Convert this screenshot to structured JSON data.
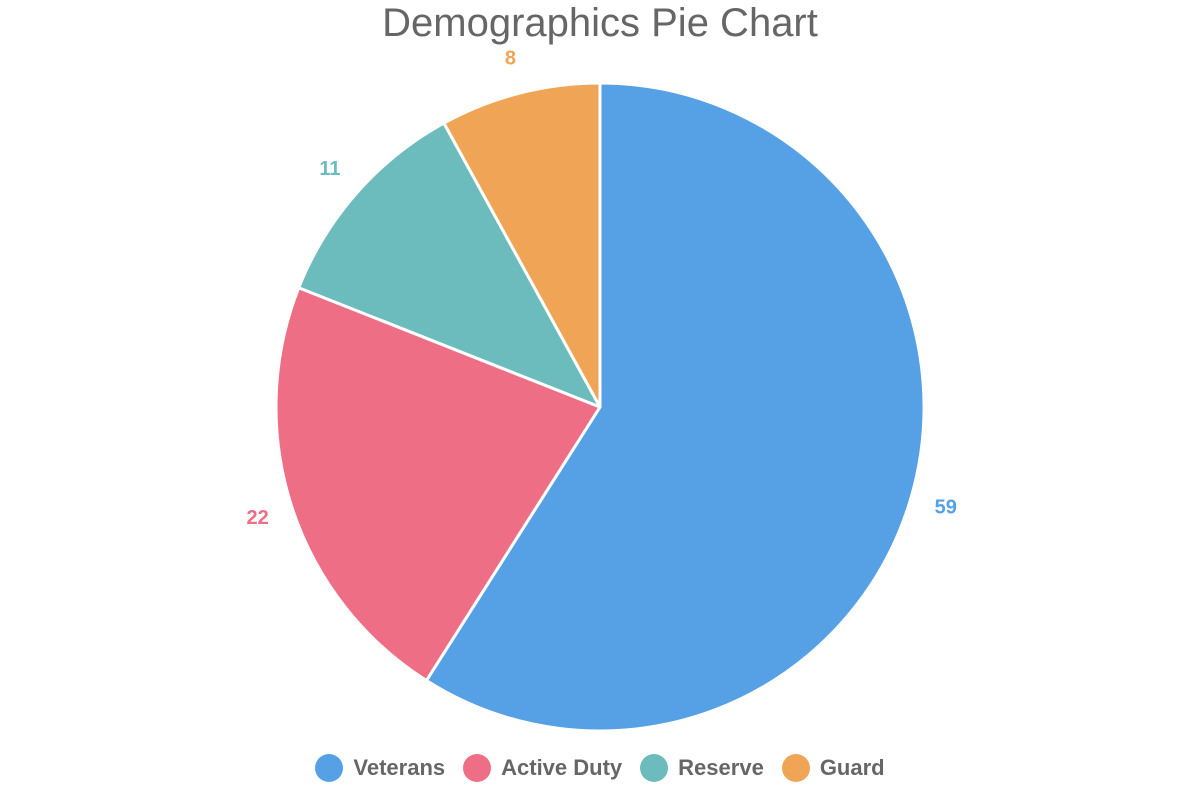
{
  "chart_data": {
    "type": "pie",
    "title": "Demographics Pie Chart",
    "categories": [
      "Veterans",
      "Active Duty",
      "Reserve",
      "Guard"
    ],
    "values": [
      59,
      22,
      11,
      8
    ],
    "colors": [
      "#56a0e5",
      "#ee6e85",
      "#6cbcbd",
      "#f0a556"
    ],
    "legend_position": "bottom",
    "data_labels": true
  }
}
